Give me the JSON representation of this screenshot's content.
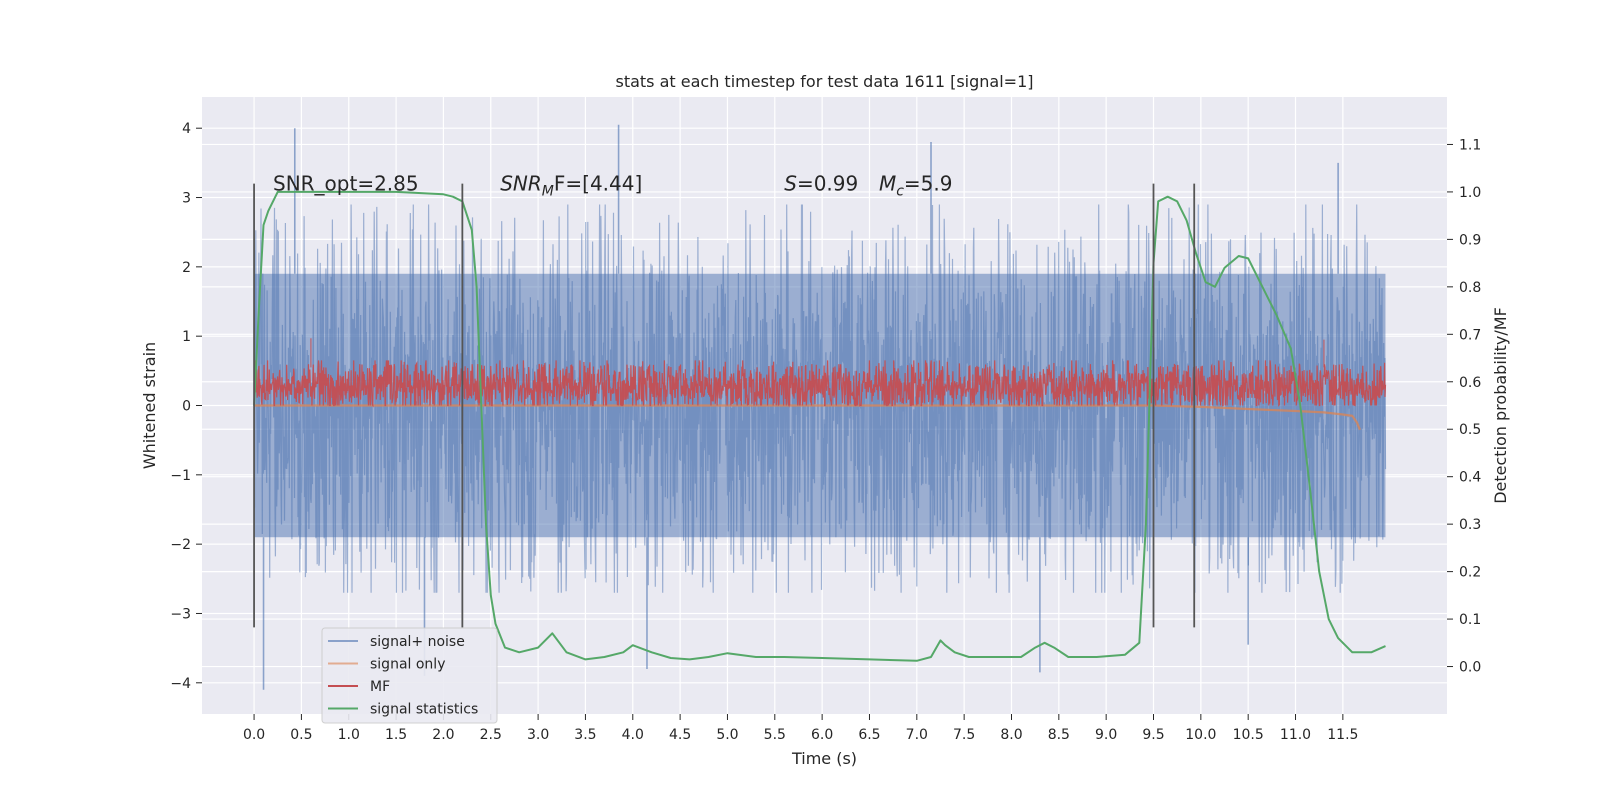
{
  "chart_data": {
    "type": "line",
    "title": "stats at each timestep for test data 1611 [signal=1]",
    "xlabel": "Time (s)",
    "ylabel": "Whitened strain",
    "ylabel_right": "Detection probability/MF",
    "xlim": [
      -0.55,
      12.6
    ],
    "ylim": [
      -4.45,
      4.45
    ],
    "ylim_right": [
      -0.1,
      1.2
    ],
    "x_ticks": [
      0.0,
      0.5,
      1.0,
      1.5,
      2.0,
      2.5,
      3.0,
      3.5,
      4.0,
      4.5,
      5.0,
      5.5,
      6.0,
      6.5,
      7.0,
      7.5,
      8.0,
      8.5,
      9.0,
      9.5,
      10.0,
      10.5,
      11.0,
      11.5
    ],
    "x_tick_labels": [
      "0.0",
      "0.5",
      "1.0",
      "1.5",
      "2.0",
      "2.5",
      "3.0",
      "3.5",
      "4.0",
      "4.5",
      "5.0",
      "5.5",
      "6.0",
      "6.5",
      "7.0",
      "7.5",
      "8.0",
      "8.5",
      "9.0",
      "9.5",
      "10.0",
      "10.5",
      "11.0",
      "11.5"
    ],
    "y_ticks": [
      -4,
      -3,
      -2,
      -1,
      0,
      1,
      2,
      3,
      4
    ],
    "y_tick_labels": [
      "−4",
      "−3",
      "−2",
      "−1",
      "0",
      "1",
      "2",
      "3",
      "4"
    ],
    "y_right_ticks": [
      0.0,
      0.1,
      0.2,
      0.3,
      0.4,
      0.5,
      0.6,
      0.7,
      0.8,
      0.9,
      1.0,
      1.1
    ],
    "y_right_tick_labels": [
      "0.0",
      "0.1",
      "0.2",
      "0.3",
      "0.4",
      "0.5",
      "0.6",
      "0.7",
      "0.8",
      "0.9",
      "1.0",
      "1.1"
    ],
    "grid": true,
    "legend_position": "lower-left",
    "annotations": [
      {
        "text": "SNR_opt=2.85",
        "x": 0.2,
        "y": 3.2
      },
      {
        "text": "SNR",
        "sub": "M",
        "tail": "F=[4.44]",
        "italic_head": true,
        "x": 2.6,
        "y": 3.2
      },
      {
        "text": "S",
        "tail": "=0.99",
        "italic_head": true,
        "x": 5.6,
        "y": 3.2
      },
      {
        "text": "M",
        "sub": "c",
        "tail": "=5.9",
        "italic_head": true,
        "x": 6.6,
        "y": 3.2
      }
    ],
    "vertical_markers": [
      {
        "x": 0.0,
        "y": [
          -3.2,
          3.2
        ]
      },
      {
        "x": 2.2,
        "y": [
          -3.2,
          3.2
        ]
      },
      {
        "x": 9.5,
        "y": [
          -3.2,
          3.2
        ]
      },
      {
        "x": 9.93,
        "y": [
          -3.2,
          3.2
        ]
      }
    ],
    "series": [
      {
        "name": "signal+ noise",
        "color": "#4c72b0",
        "axis": "left",
        "style": "dense-noise",
        "x_range": [
          0.0,
          11.95
        ],
        "core_band": [
          -1.9,
          1.9
        ],
        "typical_extent": [
          -2.7,
          2.9
        ],
        "extreme_peaks": [
          {
            "x": 0.43,
            "y": 4.0
          },
          {
            "x": 3.85,
            "y": 4.05
          },
          {
            "x": 7.15,
            "y": 3.8
          },
          {
            "x": 11.45,
            "y": 3.5
          }
        ],
        "extreme_troughs": [
          {
            "x": 0.1,
            "y": -4.1
          },
          {
            "x": 1.8,
            "y": -3.9
          },
          {
            "x": 4.15,
            "y": -3.8
          },
          {
            "x": 8.3,
            "y": -3.85
          },
          {
            "x": 10.5,
            "y": -3.45
          }
        ]
      },
      {
        "name": "signal only",
        "color": "#dd8452",
        "axis": "left",
        "x": [
          0.0,
          9.5,
          10.0,
          10.5,
          11.0,
          11.3,
          11.5,
          11.6,
          11.65,
          11.68
        ],
        "y": [
          0.0,
          0.0,
          -0.02,
          -0.05,
          -0.08,
          -0.1,
          -0.13,
          -0.15,
          -0.25,
          -0.35
        ]
      },
      {
        "name": "MF",
        "color": "#c44e52",
        "axis": "left",
        "style": "dense-noise",
        "x_range": [
          0.0,
          11.95
        ],
        "core_band": [
          0.0,
          0.55
        ],
        "typical_extent": [
          0.0,
          0.65
        ],
        "extreme_peaks": [
          {
            "x": 0.6,
            "y": 0.97
          },
          {
            "x": 11.3,
            "y": 0.95
          }
        ]
      },
      {
        "name": "signal statistics",
        "color": "#55a868",
        "axis": "right",
        "x": [
          0.0,
          0.05,
          0.1,
          0.15,
          0.25,
          0.35,
          0.5,
          1.0,
          1.5,
          2.0,
          2.1,
          2.2,
          2.3,
          2.35,
          2.4,
          2.45,
          2.5,
          2.55,
          2.65,
          2.8,
          3.0,
          3.15,
          3.3,
          3.5,
          3.7,
          3.9,
          4.0,
          4.2,
          4.4,
          4.6,
          4.8,
          5.0,
          5.3,
          5.6,
          6.0,
          6.5,
          7.0,
          7.15,
          7.25,
          7.3,
          7.4,
          7.55,
          7.8,
          8.1,
          8.25,
          8.35,
          8.45,
          8.6,
          8.9,
          9.2,
          9.35,
          9.42,
          9.5,
          9.55,
          9.65,
          9.75,
          9.85,
          9.95,
          10.05,
          10.15,
          10.25,
          10.4,
          10.5,
          10.65,
          10.8,
          10.95,
          11.05,
          11.15,
          11.25,
          11.35,
          11.45,
          11.6,
          11.8,
          11.95
        ],
        "y": [
          0.55,
          0.75,
          0.93,
          0.96,
          1.0,
          1.0,
          1.0,
          1.0,
          1.0,
          0.995,
          0.99,
          0.98,
          0.92,
          0.8,
          0.55,
          0.3,
          0.15,
          0.09,
          0.04,
          0.03,
          0.04,
          0.07,
          0.03,
          0.015,
          0.02,
          0.03,
          0.045,
          0.03,
          0.018,
          0.015,
          0.02,
          0.028,
          0.02,
          0.02,
          0.018,
          0.015,
          0.012,
          0.02,
          0.055,
          0.045,
          0.03,
          0.02,
          0.02,
          0.02,
          0.04,
          0.05,
          0.04,
          0.02,
          0.02,
          0.025,
          0.05,
          0.3,
          0.85,
          0.98,
          0.99,
          0.98,
          0.94,
          0.87,
          0.81,
          0.8,
          0.84,
          0.865,
          0.86,
          0.8,
          0.74,
          0.67,
          0.55,
          0.38,
          0.2,
          0.1,
          0.06,
          0.03,
          0.03,
          0.043
        ]
      }
    ]
  }
}
